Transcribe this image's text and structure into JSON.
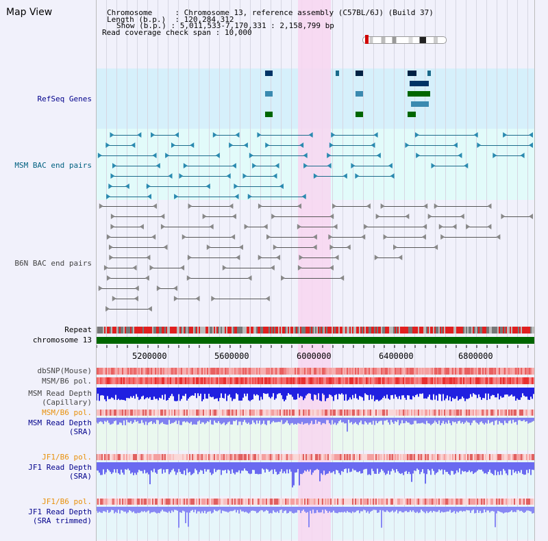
{
  "window": {
    "title": "Map View"
  },
  "header": {
    "chromosome_key": "Chromosome",
    "chromosome_value": "Chromosome 13, reference assembly (C57BL/6J) (Build 37)",
    "length_key": "Length (b.p.)",
    "length_value": "120,284,312",
    "show_key": "Show (b.p.)",
    "show_value": "5,011,533-7,170,331 : 2,158,799 bp",
    "coverage_key": "Read coverage check span",
    "coverage_value": "10,000"
  },
  "axis": {
    "ticks": [
      "5200000",
      "5600000",
      "6000000",
      "6400000",
      "6800000"
    ]
  },
  "tracks": {
    "refseq": "RefSeq Genes",
    "msm_bac": "MSM BAC end pairs",
    "b6n_bac": "B6N BAC end pairs",
    "repeat": "Repeat",
    "chrom": "chromosome 13",
    "dbsnp": "dbSNP(Mouse)",
    "msm_b6_pol_1": "MSM/B6 pol.",
    "msm_rd_cap_1": "MSM Read Depth",
    "msm_rd_cap_2": "(Capillary)",
    "msm_b6_pol_2": "MSM/B6 pol.",
    "msm_rd_sra_1": "MSM Read Depth",
    "msm_rd_sra_2": "(SRA)",
    "jf1_b6_pol_1": "JF1/B6 pol.",
    "jf1_rd_sra_1": "JF1 Read Depth",
    "jf1_rd_sra_2": "(SRA)",
    "jf1_b6_pol_2": "JF1/B6 pol.",
    "jf1_rd_trim_1": "JF1 Read Depth",
    "jf1_rd_trim_2": "(SRA trimmed)"
  },
  "colors": {
    "refseq_bg": "#d6f0fb",
    "msm_bg": "#e2fbfa",
    "highlight": "#f8d6f0",
    "label_blue": "#00008b",
    "label_teal": "#006080",
    "label_gray": "#444444",
    "label_orange": "#e8900a",
    "chromosome_green": "#006600"
  }
}
